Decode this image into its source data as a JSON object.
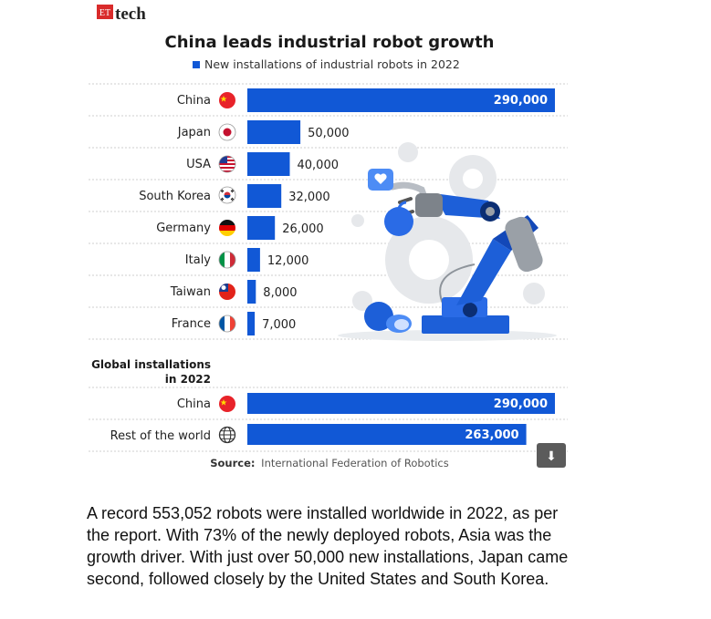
{
  "brand": {
    "et": "ET",
    "tech": "tech"
  },
  "chart_data": [
    {
      "type": "bar",
      "orientation": "horizontal",
      "title": "China leads industrial robot growth",
      "legend": "New installations of industrial robots in 2022",
      "categories": [
        "China",
        "Japan",
        "USA",
        "South Korea",
        "Germany",
        "Italy",
        "Taiwan",
        "France"
      ],
      "values": [
        290000,
        50000,
        40000,
        32000,
        26000,
        12000,
        8000,
        7000
      ],
      "labels": [
        "290,000",
        "50,000",
        "40,000",
        "32,000",
        "26,000",
        "12,000",
        "8,000",
        "7,000"
      ],
      "xlim": [
        0,
        290000
      ]
    },
    {
      "type": "bar",
      "orientation": "horizontal",
      "title": "Global installations in 2022",
      "categories": [
        "China",
        "Rest of the world"
      ],
      "values": [
        290000,
        263000
      ],
      "labels": [
        "290,000",
        "263,000"
      ],
      "xlim": [
        0,
        290000
      ]
    }
  ],
  "section2": {
    "title_line1": "Global installations",
    "title_line2": "in 2022"
  },
  "source": {
    "label": "Source:",
    "text": "International Federation of Robotics"
  },
  "colors": {
    "bar": "#1158d6",
    "title": "#1a1a1a",
    "robot": "#1d5fd8"
  },
  "download": {
    "icon": "download-icon"
  },
  "caption": "A record 553,052 robots were installed worldwide in 2022, as per the report. With 73% of the newly deployed robots, Asia was the growth driver. With just over 50,000 new installations, Japan came second, followed closely by the United States and South Korea."
}
